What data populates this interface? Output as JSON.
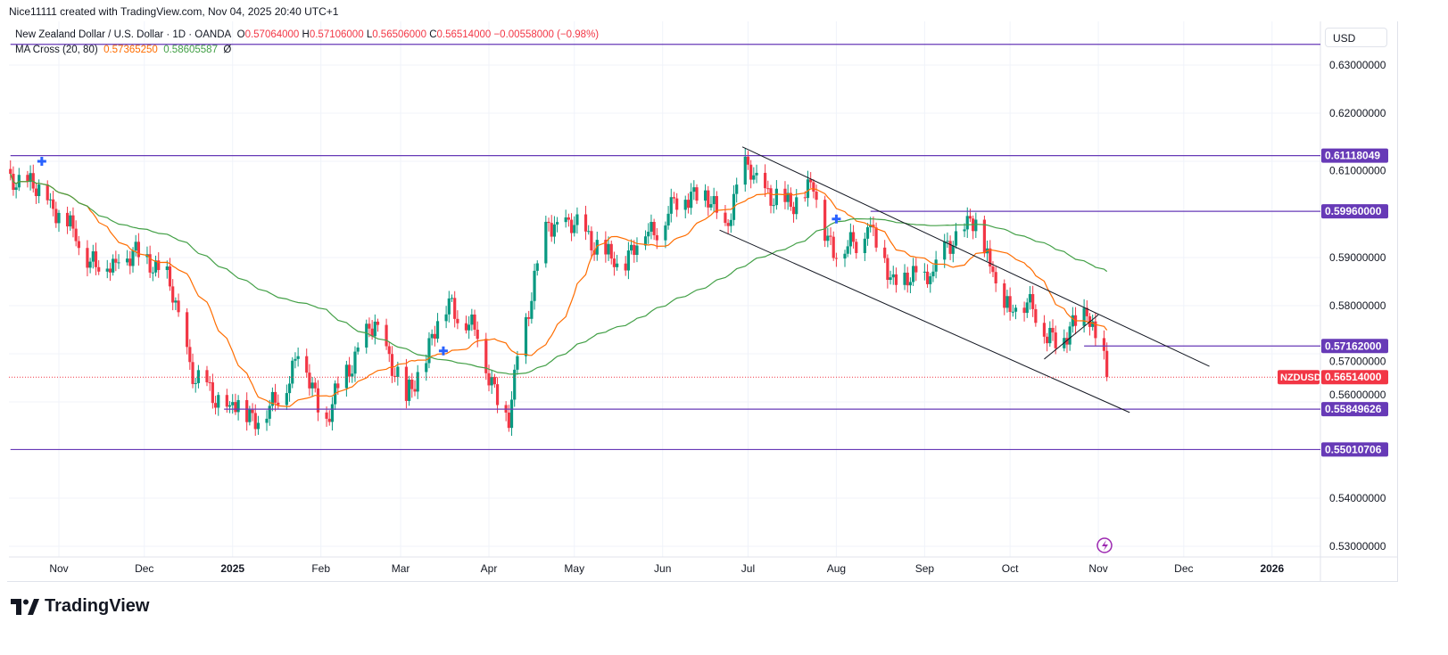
{
  "credit": "Nice11111 created with TradingView.com, Nov 04, 2025 20:40 UTC+1",
  "legend": {
    "symbol": "New Zealand Dollar / U.S. Dollar · 1D · OANDA",
    "o_label": "O",
    "o": "0.57064000",
    "h_label": "H",
    "h": "0.57106000",
    "l_label": "L",
    "l": "0.56506000",
    "c_label": "C",
    "c": "0.56514000",
    "change": "−0.00558000 (−0.98%)",
    "indicator": "MA Cross (20, 80)",
    "ma_fast": "0.57365250",
    "ma_slow": "0.58605587",
    "eye": "Ø"
  },
  "currency": "USD",
  "logo": "TradingView",
  "colors": {
    "up": "#089981",
    "down": "#f23645",
    "ma_fast": "#ff6d00",
    "ma_slow": "#43a047",
    "drawing": "#673ab7",
    "cross": "#2962ff"
  },
  "chart_data": {
    "type": "candlestick",
    "symbol": "NZDUSD",
    "interval": "1D",
    "ylim": [
      0.525,
      0.6343
    ],
    "grid": true,
    "price_ticks": [
      "0.63000000",
      "0.62000000",
      "0.61000000",
      "0.59000000",
      "0.58000000",
      "0.57000000",
      "0.56000000",
      "0.54000000",
      "0.53000000"
    ],
    "time_ticks": [
      {
        "label": "Nov",
        "date": "2024-11-01"
      },
      {
        "label": "Dec",
        "date": "2024-12-01"
      },
      {
        "label": "2025",
        "date": "2025-01-01",
        "bold": true
      },
      {
        "label": "Feb",
        "date": "2025-02-01"
      },
      {
        "label": "Mar",
        "date": "2025-03-01"
      },
      {
        "label": "Apr",
        "date": "2025-04-01"
      },
      {
        "label": "May",
        "date": "2025-05-01"
      },
      {
        "label": "Jun",
        "date": "2025-06-01"
      },
      {
        "label": "Jul",
        "date": "2025-07-01"
      },
      {
        "label": "Aug",
        "date": "2025-08-01"
      },
      {
        "label": "Sep",
        "date": "2025-09-01"
      },
      {
        "label": "Oct",
        "date": "2025-10-01"
      },
      {
        "label": "Nov",
        "date": "2025-11-01"
      },
      {
        "label": "Dec",
        "date": "2025-12-01"
      },
      {
        "label": "2026",
        "date": "2026-01-01",
        "bold": true
      }
    ],
    "close_path": [
      [
        "2024-10-15",
        0.6074
      ],
      [
        "2024-10-28",
        0.6019
      ],
      [
        "2024-11-06",
        0.596
      ],
      [
        "2024-11-14",
        0.588
      ],
      [
        "2024-11-22",
        0.589
      ],
      [
        "2024-12-02",
        0.5907
      ],
      [
        "2024-12-10",
        0.584
      ],
      [
        "2024-12-19",
        0.5639
      ],
      [
        "2024-12-31",
        0.5593
      ],
      [
        "2025-01-13",
        0.5565
      ],
      [
        "2025-01-24",
        0.5695
      ],
      [
        "2025-02-03",
        0.5565
      ],
      [
        "2025-02-14",
        0.5713
      ],
      [
        "2025-02-21",
        0.576
      ],
      [
        "2025-03-03",
        0.5602
      ],
      [
        "2025-03-18",
        0.5815
      ],
      [
        "2025-03-28",
        0.5731
      ],
      [
        "2025-04-08",
        0.5546
      ],
      [
        "2025-04-11",
        0.5695
      ],
      [
        "2025-04-22",
        0.5972
      ],
      [
        "2025-05-05",
        0.5954
      ],
      [
        "2025-05-15",
        0.588
      ],
      [
        "2025-05-26",
        0.5944
      ],
      [
        "2025-06-03",
        0.5991
      ],
      [
        "2025-06-12",
        0.6046
      ],
      [
        "2025-06-23",
        0.5972
      ],
      [
        "2025-07-01",
        0.6093
      ],
      [
        "2025-07-10",
        0.6009
      ],
      [
        "2025-07-24",
        0.6037
      ],
      [
        "2025-08-01",
        0.5898
      ],
      [
        "2025-08-12",
        0.5963
      ],
      [
        "2025-08-22",
        0.5843
      ],
      [
        "2025-09-03",
        0.5861
      ],
      [
        "2025-09-17",
        0.5981
      ],
      [
        "2025-09-25",
        0.587
      ],
      [
        "2025-10-01",
        0.5787
      ],
      [
        "2025-10-08",
        0.5824
      ],
      [
        "2025-10-14",
        0.5722
      ],
      [
        "2025-10-28",
        0.5778
      ],
      [
        "2025-11-03",
        0.5706
      ],
      [
        "2025-11-04",
        0.56514
      ]
    ],
    "last_price": {
      "label": "NZDUSD",
      "value": "0.56514000",
      "price": 0.56514
    },
    "moving_averages": [
      {
        "name": "MA 20",
        "period": 20,
        "color": "#ff6d00"
      },
      {
        "name": "MA 80",
        "period": 80,
        "color": "#43a047"
      }
    ],
    "horizontal_lines": [
      {
        "price": 0.6343,
        "from": "2024-10-15",
        "label": ""
      },
      {
        "price": 0.61118049,
        "from": "2024-10-15",
        "label": "0.61118049"
      },
      {
        "price": 0.5996,
        "from": "2025-08-13",
        "label": "0.59960000"
      },
      {
        "price": 0.57162,
        "from": "2025-10-27",
        "label": "0.57162000"
      },
      {
        "price": 0.55849626,
        "from": "2024-12-29",
        "label": "0.55849626"
      },
      {
        "price": 0.55010706,
        "from": "2024-10-15",
        "label": "0.55010706"
      }
    ],
    "trend_lines": [
      {
        "from": [
          "2025-06-29",
          0.613
        ],
        "to": [
          "2025-12-10",
          0.5674
        ]
      },
      {
        "from": [
          "2025-06-21",
          0.5957
        ],
        "to": [
          "2025-11-12",
          0.5578
        ]
      },
      {
        "from": [
          "2025-10-13",
          0.5689
        ],
        "to": [
          "2025-11-01",
          0.5781
        ]
      }
    ],
    "cross_markers": [
      {
        "date": "2024-10-26",
        "price": 0.61
      },
      {
        "date": "2025-03-16",
        "price": 0.5706
      },
      {
        "date": "2025-08-01",
        "price": 0.598
      }
    ]
  }
}
